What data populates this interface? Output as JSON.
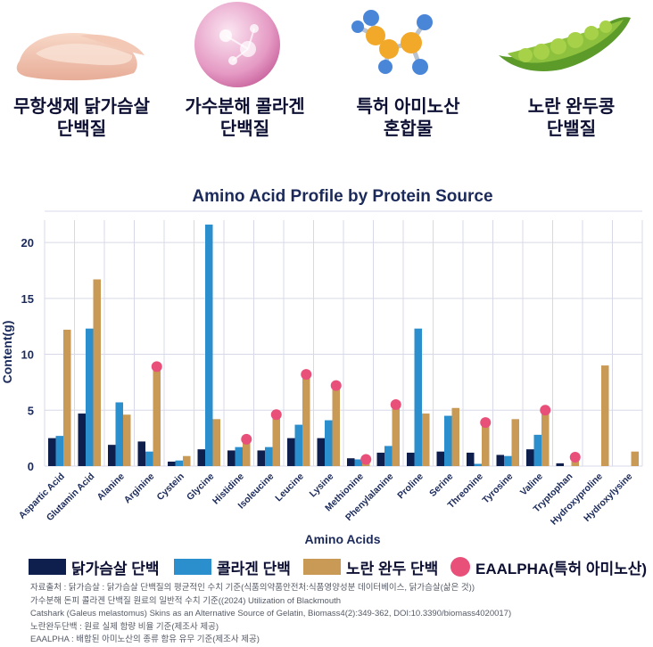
{
  "header": {
    "items": [
      {
        "line1": "무항생제 닭가슴살",
        "line2": "단백질",
        "icon": "chicken-breast-icon"
      },
      {
        "line1": "가수분해 콜라겐",
        "line2": "단백질",
        "icon": "collagen-sphere-icon"
      },
      {
        "line1": "특허 아미노산",
        "line2": "혼합물",
        "icon": "molecule-icon"
      },
      {
        "line1": "노란 완두콩",
        "line2": "단밸질",
        "icon": "pea-pod-icon"
      }
    ]
  },
  "colors": {
    "chicken": "#0f1f4d",
    "collagen": "#2b8fcd",
    "pea": "#c99a56",
    "eaalpha": "#e8507a",
    "grid": "#d7d9e8",
    "text": "#1b2a5a"
  },
  "chart_data": {
    "type": "bar",
    "title": "Amino Acid Profile by Protein Source",
    "xlabel": "Amino Acids",
    "ylabel": "Content(g)",
    "ylim": [
      0,
      22
    ],
    "yticks": [
      0,
      5,
      10,
      15,
      20
    ],
    "grid": true,
    "categories": [
      "Aspartic Acid",
      "Glutamin Acid",
      "Alanine",
      "Arginine",
      "Cystein",
      "Glycine",
      "Histidine",
      "Isoleucine",
      "Leucine",
      "Lysine",
      "Methionine",
      "Phenylalanine",
      "Proline",
      "Serine",
      "Threonine",
      "Tyrosine",
      "Valine",
      "Tryptophan",
      "Hydroxyproline",
      "Hydroxylysine"
    ],
    "series": [
      {
        "name": "닭가슴살 단백",
        "key": "chicken",
        "values": [
          2.5,
          4.7,
          1.9,
          2.2,
          0.4,
          1.5,
          1.4,
          1.4,
          2.5,
          2.5,
          0.7,
          1.2,
          1.2,
          1.3,
          1.2,
          1.0,
          1.5,
          0.25,
          0,
          0
        ]
      },
      {
        "name": "콜라겐 단백",
        "key": "collagen",
        "values": [
          2.7,
          12.3,
          5.7,
          1.3,
          0.5,
          21.6,
          1.7,
          1.7,
          3.7,
          4.1,
          0.6,
          1.8,
          12.3,
          4.5,
          0.2,
          0.9,
          2.8,
          0,
          0,
          0
        ]
      },
      {
        "name": "노란 완두 단백",
        "key": "pea",
        "values": [
          12.2,
          16.7,
          4.6,
          8.9,
          0.9,
          4.2,
          2.4,
          4.6,
          8.2,
          7.2,
          0.6,
          5.5,
          4.7,
          5.2,
          3.9,
          4.2,
          5.0,
          0.8,
          9.0,
          1.3
        ]
      }
    ],
    "markers": {
      "name": "EAALPHA(특허 아미노산)",
      "description": "",
      "present": [
        false,
        false,
        false,
        true,
        false,
        false,
        true,
        true,
        true,
        true,
        true,
        true,
        false,
        false,
        true,
        false,
        true,
        true,
        false,
        false
      ]
    }
  },
  "legend": {
    "chicken": "닭가슴살 단백",
    "collagen": "콜라겐 단백",
    "pea": "노란 완두 단백",
    "eaalpha": "EAALPHA(특허 아미노산)"
  },
  "notes": [
    "자료출처 : 닭가슴살 : 닭가슴살 단백질의 평균적인 수치 기준(식품의약품안전처:식품영양성분 데이터베이스, 닭가슴살(삶은 것))",
    "가수분해 돈피 콜라겐 단백질 원료의 일반적 수치 기준((2024) Utilization of Blackmouth",
    "Catshark (Galeus melastomus) Skins as an Alternative Source of Gelatin, Biomass4(2):349-362, DOI:10.3390/biomass4020017)",
    "노란완두단백 : 원료 실제 함량 비율 기준(제조사 제공)",
    "EAALPHA : 배합된 아미노산의 종류 함유 유무 기준(제조사 제공)"
  ]
}
